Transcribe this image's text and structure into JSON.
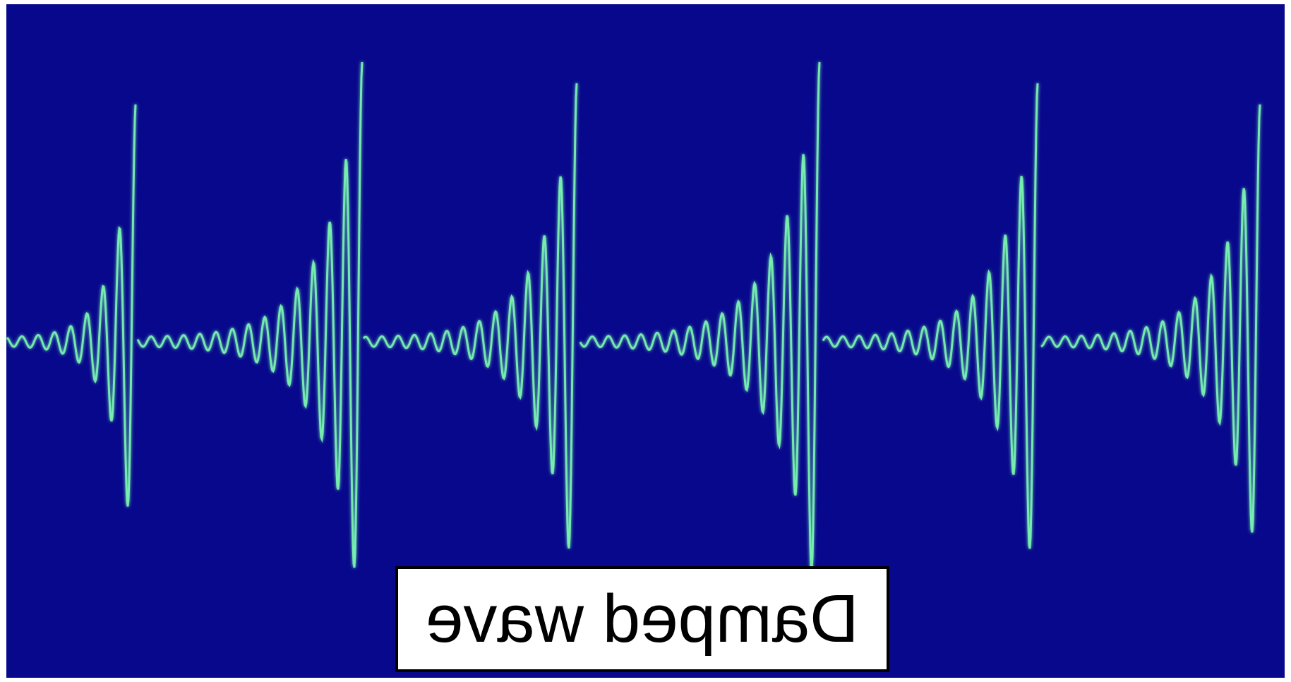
{
  "label": "Damped wave"
}
